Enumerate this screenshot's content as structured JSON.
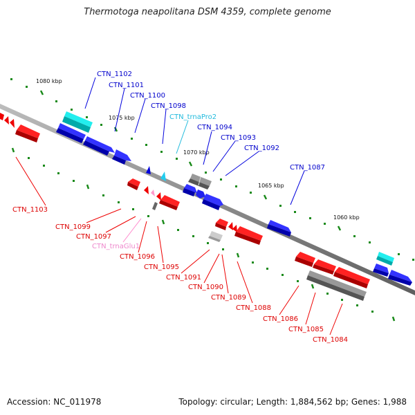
{
  "title": "Thermotoga neapolitana DSM 4359, complete genome",
  "footer": {
    "accession": "Accession: NC_011978",
    "summary": "Topology: circular; Length: 1,884,562 bp; Genes: 1,988"
  },
  "colors": {
    "forward": "#0000ee",
    "reverse": "#ee0000",
    "rna": "#00cccc",
    "trna_glu": "#ee88cc",
    "other": "#777777",
    "tick": "#1a8a1a",
    "backbone": "#7a7a7a"
  },
  "scale": {
    "ticks": [
      "1080 kbp",
      "1075 kbp",
      "1070 kbp",
      "1065 kbp",
      "1060 kbp"
    ]
  },
  "genes_top": [
    "CTN_1102",
    "CTN_1101",
    "CTN_1100",
    "CTN_1098",
    "CTN_trnaPro2",
    "CTN_1094",
    "CTN_1093",
    "CTN_1092",
    "CTN_1087"
  ],
  "genes_bottom": [
    "CTN_1103",
    "CTN_1099",
    "CTN_1097",
    "CTN_trnaGlu1",
    "CTN_1096",
    "CTN_1095",
    "CTN_1091",
    "CTN_1090",
    "CTN_1089",
    "CTN_1088",
    "CTN_1086",
    "CTN_1085",
    "CTN_1084"
  ]
}
